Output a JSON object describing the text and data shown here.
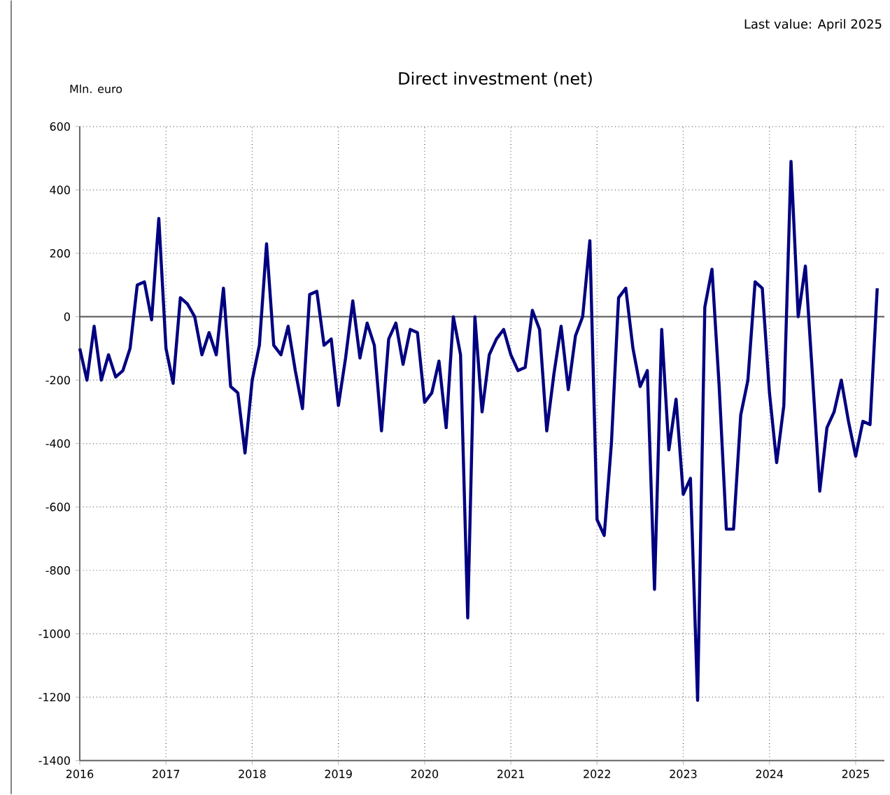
{
  "chart_data": {
    "type": "line",
    "title": "Direct investment (net)",
    "ylabel": "Mln. euro",
    "annotations": [
      "Last value: April 2025"
    ],
    "x": [
      "2016-01",
      "2016-02",
      "2016-03",
      "2016-04",
      "2016-05",
      "2016-06",
      "2016-07",
      "2016-08",
      "2016-09",
      "2016-10",
      "2016-11",
      "2016-12",
      "2017-01",
      "2017-02",
      "2017-03",
      "2017-04",
      "2017-05",
      "2017-06",
      "2017-07",
      "2017-08",
      "2017-09",
      "2017-10",
      "2017-11",
      "2017-12",
      "2018-01",
      "2018-02",
      "2018-03",
      "2018-04",
      "2018-05",
      "2018-06",
      "2018-07",
      "2018-08",
      "2018-09",
      "2018-10",
      "2018-11",
      "2018-12",
      "2019-01",
      "2019-02",
      "2019-03",
      "2019-04",
      "2019-05",
      "2019-06",
      "2019-07",
      "2019-08",
      "2019-09",
      "2019-10",
      "2019-11",
      "2019-12",
      "2020-01",
      "2020-02",
      "2020-03",
      "2020-04",
      "2020-05",
      "2020-06",
      "2020-07",
      "2020-08",
      "2020-09",
      "2020-10",
      "2020-11",
      "2020-12",
      "2021-01",
      "2021-02",
      "2021-03",
      "2021-04",
      "2021-05",
      "2021-06",
      "2021-07",
      "2021-08",
      "2021-09",
      "2021-10",
      "2021-11",
      "2021-12",
      "2022-01",
      "2022-02",
      "2022-03",
      "2022-04",
      "2022-05",
      "2022-06",
      "2022-07",
      "2022-08",
      "2022-09",
      "2022-10",
      "2022-11",
      "2022-12",
      "2023-01",
      "2023-02",
      "2023-03",
      "2023-04",
      "2023-05",
      "2023-06",
      "2023-07",
      "2023-08",
      "2023-09",
      "2023-10",
      "2023-11",
      "2023-12",
      "2024-01",
      "2024-02",
      "2024-03",
      "2024-04",
      "2024-05",
      "2024-06",
      "2024-07",
      "2024-08",
      "2024-09",
      "2024-10",
      "2024-11",
      "2024-12",
      "2025-01",
      "2025-02",
      "2025-03",
      "2025-04"
    ],
    "series": [
      {
        "color": "#000080",
        "values": [
          -100,
          -200,
          -30,
          -200,
          -120,
          -190,
          -170,
          -100,
          100,
          110,
          -10,
          310,
          -100,
          -210,
          60,
          40,
          0,
          -120,
          -50,
          -120,
          90,
          -220,
          -240,
          -430,
          -200,
          -90,
          230,
          -90,
          -120,
          -30,
          -170,
          -290,
          70,
          80,
          -90,
          -70,
          -280,
          -130,
          50,
          -130,
          -20,
          -90,
          -360,
          -70,
          -20,
          -150,
          -40,
          -50,
          -270,
          -240,
          -140,
          -350,
          0,
          -120,
          -950,
          0,
          -300,
          -120,
          -70,
          -40,
          -120,
          -170,
          -160,
          20,
          -40,
          -360,
          -180,
          -30,
          -230,
          -60,
          0,
          240,
          -640,
          -690,
          -400,
          60,
          90,
          -100,
          -220,
          -170,
          -860,
          -40,
          -420,
          -260,
          -560,
          -510,
          -1210,
          30,
          150,
          -220,
          -670,
          -670,
          -310,
          -200,
          110,
          90,
          -240,
          -460,
          -280,
          490,
          0,
          160,
          -190,
          -550,
          -350,
          -300,
          -200,
          -330,
          -440,
          -330,
          -340,
          90
        ]
      }
    ],
    "xlim": [
      "2016-01",
      "2025-05"
    ],
    "xticks": [
      "2016",
      "2017",
      "2018",
      "2019",
      "2020",
      "2021",
      "2022",
      "2023",
      "2024",
      "2025"
    ],
    "ylim": [
      -1400,
      600
    ],
    "yticks": [
      -1400,
      -1200,
      -1000,
      -800,
      -600,
      -400,
      -200,
      0,
      200,
      400,
      600
    ],
    "ref_lines": [
      {
        "axis": "y",
        "value": 0,
        "color": "#555555",
        "line_style": "solid"
      }
    ],
    "grid": true,
    "line_style": "solid",
    "marker": "none"
  }
}
